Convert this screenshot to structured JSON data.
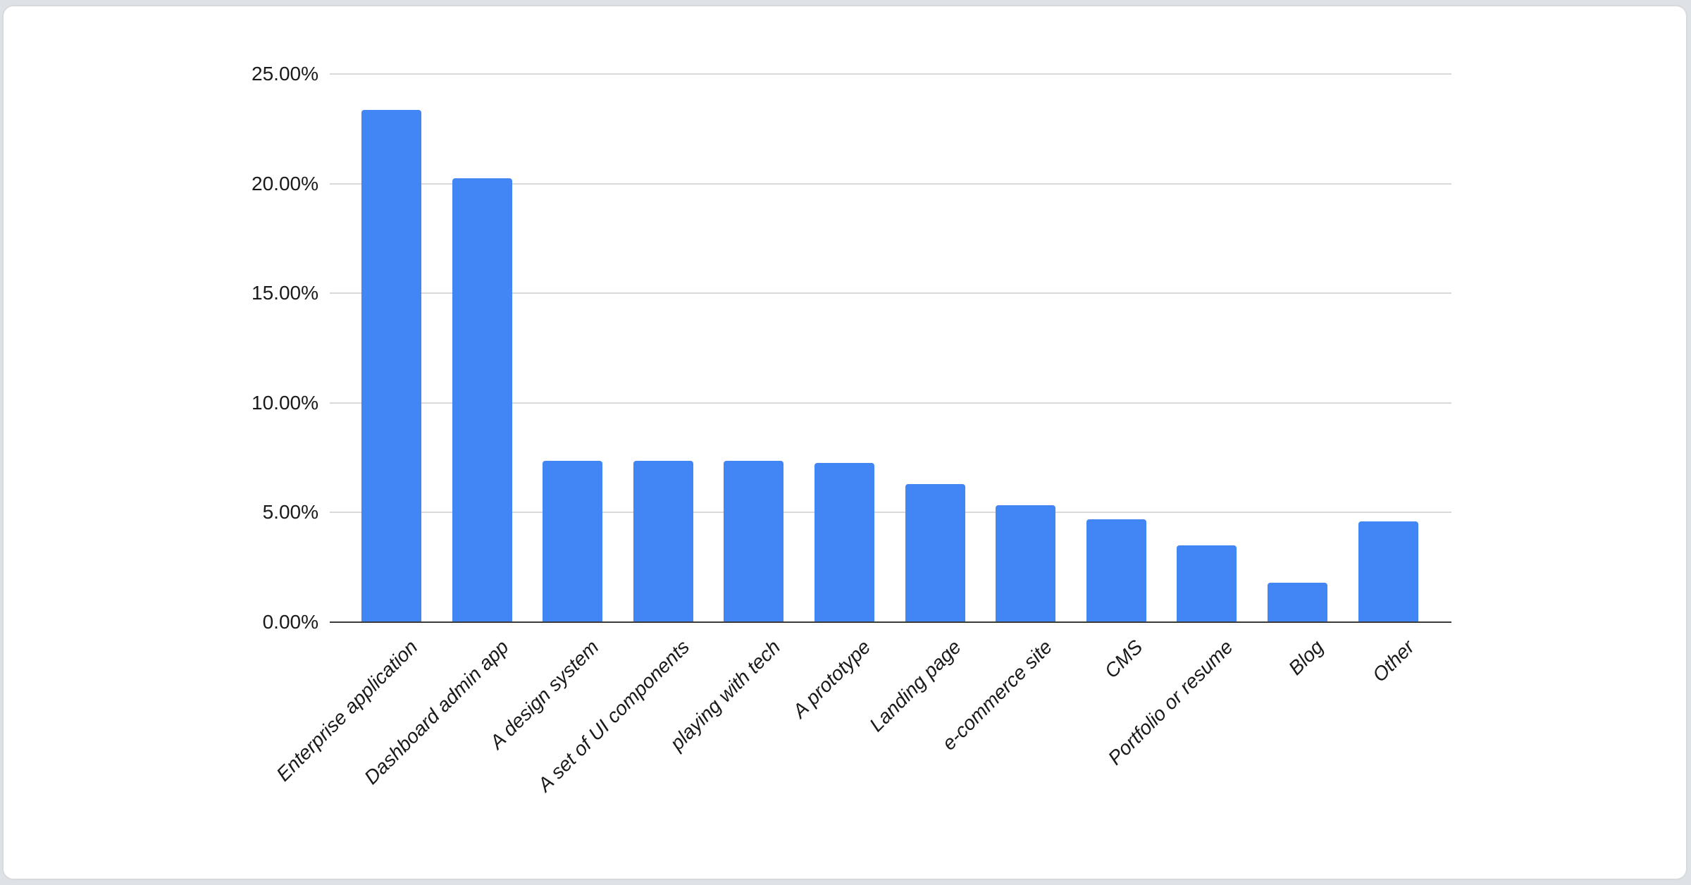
{
  "page": {
    "background_color": "#dee2e6",
    "card_background_color": "#ffffff"
  },
  "chart_data": {
    "type": "bar",
    "title": "",
    "xlabel": "",
    "ylabel": "",
    "categories": [
      "Enterprise application",
      "Dashboard admin app",
      "A design system",
      "A set of UI components",
      "playing with tech",
      "A prototype",
      "Landing page",
      "e-commerce site",
      "CMS",
      "Portfolio or resume",
      "Blog",
      "Other"
    ],
    "values": [
      23.35,
      20.25,
      7.35,
      7.35,
      7.35,
      7.25,
      6.3,
      5.35,
      4.7,
      3.5,
      1.8,
      4.6
    ],
    "value_unit": "%",
    "y_ticks": [
      "0.00%",
      "5.00%",
      "10.00%",
      "15.00%",
      "20.00%",
      "25.00%"
    ],
    "y_tick_values": [
      0,
      5,
      10,
      15,
      20,
      25
    ],
    "ylim": [
      0,
      25
    ],
    "grid": true,
    "legend_position": "none",
    "bar_color": "#4285f4",
    "gridline_color": "#d9d9d9",
    "axis_line_color": "#3a3a3a",
    "tick_label_color": "#1a1a1a",
    "x_label_style": "italic, rotated 45 degrees"
  }
}
